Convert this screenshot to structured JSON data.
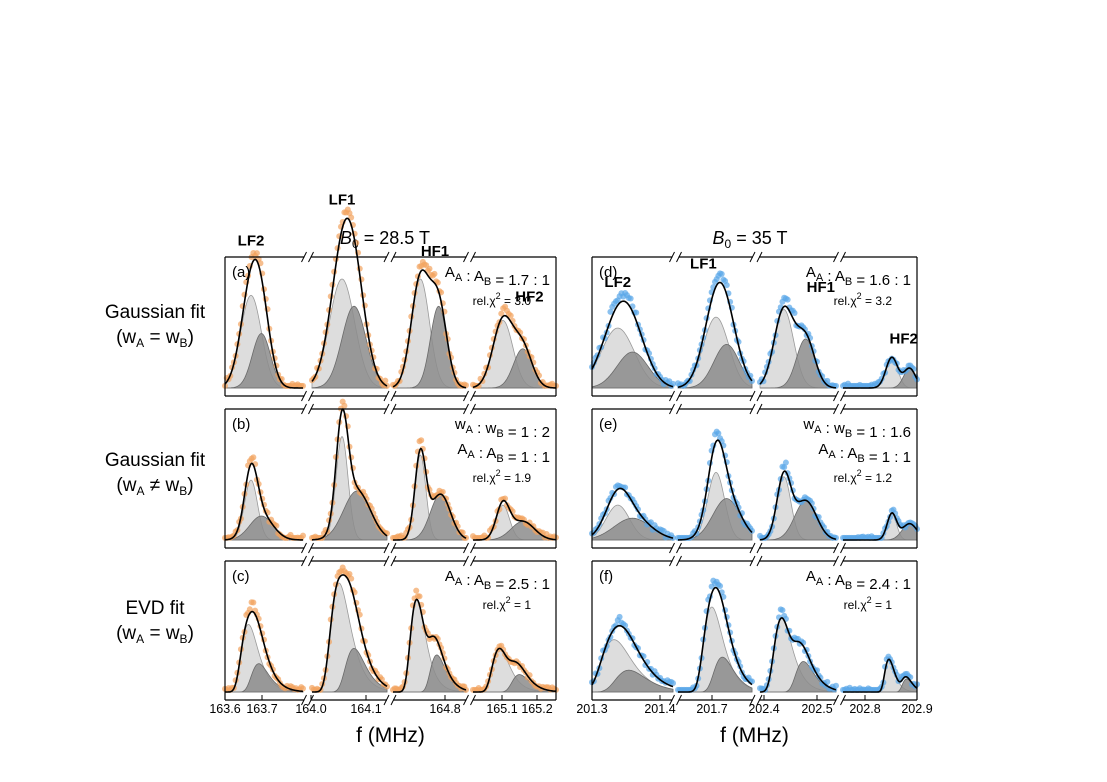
{
  "row_labels": [
    {
      "line1": "Gaussian fit",
      "line2": "(w_A = w_B)"
    },
    {
      "line1": "Gaussian fit",
      "line2": "(w_A ≠ w_B)"
    },
    {
      "line1": "EVD fit",
      "line2": "(w_A = w_B)"
    }
  ],
  "column_titles": [
    "B0 = 28.5 T",
    "B0 = 35 T"
  ],
  "chart_data": [
    {
      "type": "scatter",
      "panel": "(a)",
      "column": 0,
      "row": 0,
      "fit": "gaussian-equal-width",
      "ratio_lines": [
        "A_A : A_B = 1.7 : 1"
      ],
      "chi_text": "rel.χ² = 3.0",
      "peak_labels": [
        {
          "text": "LF2",
          "x": 163.7
        },
        {
          "text": "LF1",
          "x": 164.05
        },
        {
          "text": "HF1",
          "x": 164.78
        },
        {
          "text": "HF2",
          "x": 165.17
        }
      ],
      "segments": [
        {
          "range": [
            163.6,
            163.9
          ],
          "peaks": [
            {
              "a": 0.85,
              "b": 0.5,
              "c": 163.7,
              "sa": 0.04,
              "sb": 0.035
            }
          ]
        },
        {
          "range": [
            163.95,
            164.2
          ],
          "peaks": [
            {
              "a": 1.0,
              "b": 0.75,
              "c": 164.05,
              "sa": 0.042,
              "sb": 0.04,
              "shift": 0.04
            }
          ]
        },
        {
          "range": [
            164.55,
            164.95
          ],
          "peaks": [
            {
              "a": 1.0,
              "b": 0.75,
              "c": 164.7,
              "sa": 0.05,
              "sb": 0.045,
              "shift": 0.1
            }
          ]
        },
        {
          "range": [
            165.0,
            165.25
          ],
          "peaks": [
            {
              "a": 0.62,
              "b": 0.36,
              "c": 165.09,
              "sa": 0.03,
              "sb": 0.028,
              "shift": 0.06
            }
          ]
        }
      ],
      "series_color": "#f2a25e"
    },
    {
      "type": "scatter",
      "panel": "(b)",
      "column": 0,
      "row": 1,
      "fit": "gaussian-unequal-width",
      "ratio_lines": [
        "w_A : w_B = 1 : 2",
        "A_A : A_B = 1 : 1"
      ],
      "chi_text": "rel.χ² = 1.9",
      "peak_labels": [],
      "segments": [
        {
          "range": [
            163.6,
            163.9
          ],
          "peaks": [
            {
              "a": 0.55,
              "b": 0.22,
              "c": 163.7,
              "sa": 0.025,
              "sb": 0.045
            }
          ]
        },
        {
          "range": [
            163.95,
            164.2
          ],
          "peaks": [
            {
              "a": 0.95,
              "b": 0.45,
              "c": 164.05,
              "sa": 0.02,
              "sb": 0.045,
              "shift": 0.05
            }
          ]
        },
        {
          "range": [
            164.55,
            164.95
          ],
          "peaks": [
            {
              "a": 0.78,
              "b": 0.42,
              "c": 164.7,
              "sa": 0.03,
              "sb": 0.055,
              "shift": 0.11
            }
          ]
        },
        {
          "range": [
            165.0,
            165.25
          ],
          "peaks": [
            {
              "a": 0.32,
              "b": 0.17,
              "c": 165.09,
              "sa": 0.02,
              "sb": 0.035,
              "shift": 0.06
            }
          ]
        }
      ],
      "series_color": "#f2a25e"
    },
    {
      "type": "scatter",
      "panel": "(c)",
      "column": 0,
      "row": 2,
      "fit": "evd-equal-width",
      "ratio_lines": [
        "A_A : A_B = 2.5 : 1"
      ],
      "chi_text": "rel.χ² = 1",
      "peak_labels": [],
      "segments": [
        {
          "range": [
            163.6,
            163.9
          ],
          "peaks": [
            {
              "a": 0.62,
              "b": 0.26,
              "c": 163.69,
              "sa": 0.032,
              "sb": 0.032,
              "evd": true
            }
          ]
        },
        {
          "range": [
            163.95,
            164.2
          ],
          "peaks": [
            {
              "a": 1.0,
              "b": 0.4,
              "c": 164.04,
              "sa": 0.032,
              "sb": 0.032,
              "shift": 0.05,
              "evd": true
            }
          ]
        },
        {
          "range": [
            164.55,
            164.95
          ],
          "peaks": [
            {
              "a": 0.85,
              "b": 0.34,
              "c": 164.68,
              "sa": 0.04,
              "sb": 0.04,
              "shift": 0.11,
              "evd": true
            }
          ]
        },
        {
          "range": [
            165.0,
            165.25
          ],
          "peaks": [
            {
              "a": 0.4,
              "b": 0.16,
              "c": 165.08,
              "sa": 0.025,
              "sb": 0.025,
              "shift": 0.06,
              "evd": true
            }
          ]
        }
      ],
      "series_color": "#f2a25e"
    },
    {
      "type": "scatter",
      "panel": "(d)",
      "column": 1,
      "row": 0,
      "fit": "gaussian-equal-width",
      "ratio_lines": [
        "A_A : A_B = 1.6 : 1"
      ],
      "chi_text": "rel.χ² = 3.2",
      "peak_labels": [
        {
          "text": "LF2",
          "x": 201.37
        },
        {
          "text": "LF1",
          "x": 201.72
        },
        {
          "text": "HF1",
          "x": 202.3
        },
        {
          "text": "HF2",
          "x": 202.86
        }
      ],
      "segments": [
        {
          "range": [
            201.3,
            201.52
          ],
          "peaks": [
            {
              "a": 0.55,
              "b": 0.33,
              "c": 201.37,
              "sa": 0.045,
              "sb": 0.042
            }
          ]
        },
        {
          "range": [
            201.6,
            201.95
          ],
          "peaks": [
            {
              "a": 0.65,
              "b": 0.4,
              "c": 201.78,
              "sa": 0.06,
              "sb": 0.06,
              "shift": 0.05
            }
          ]
        },
        {
          "range": [
            202.02,
            202.37
          ],
          "peaks": [
            {
              "a": 0.72,
              "b": 0.45,
              "c": 202.13,
              "sa": 0.045,
              "sb": 0.042,
              "shift": 0.1
            }
          ]
        },
        {
          "range": [
            202.45,
            202.95
          ],
          "peaks": [
            {
              "a": 0.28,
              "b": 0.18,
              "c": 202.78,
              "sa": 0.04,
              "sb": 0.04,
              "shift": 0.12
            }
          ]
        }
      ],
      "series_color": "#5aa7e8"
    },
    {
      "type": "scatter",
      "panel": "(e)",
      "column": 1,
      "row": 1,
      "fit": "gaussian-unequal-width",
      "ratio_lines": [
        "w_A : w_B = 1 : 1.6",
        "A_A : A_B = 1 : 1"
      ],
      "chi_text": "rel.χ² = 1.2",
      "peak_labels": [],
      "segments": [
        {
          "range": [
            201.3,
            201.52
          ],
          "peaks": [
            {
              "a": 0.32,
              "b": 0.2,
              "c": 201.37,
              "sa": 0.032,
              "sb": 0.05
            }
          ]
        },
        {
          "range": [
            201.6,
            201.95
          ],
          "peaks": [
            {
              "a": 0.62,
              "b": 0.38,
              "c": 201.78,
              "sa": 0.04,
              "sb": 0.065,
              "shift": 0.05
            }
          ]
        },
        {
          "range": [
            202.02,
            202.37
          ],
          "peaks": [
            {
              "a": 0.58,
              "b": 0.36,
              "c": 202.13,
              "sa": 0.032,
              "sb": 0.05,
              "shift": 0.1
            }
          ]
        },
        {
          "range": [
            202.45,
            202.95
          ],
          "peaks": [
            {
              "a": 0.24,
              "b": 0.15,
              "c": 202.78,
              "sa": 0.032,
              "sb": 0.05,
              "shift": 0.12
            }
          ]
        }
      ],
      "series_color": "#5aa7e8"
    },
    {
      "type": "scatter",
      "panel": "(f)",
      "column": 1,
      "row": 2,
      "fit": "evd-equal-width",
      "ratio_lines": [
        "A_A : A_B = 2.4 : 1"
      ],
      "chi_text": "rel.χ² = 1",
      "peak_labels": [],
      "segments": [
        {
          "range": [
            201.3,
            201.52
          ],
          "peaks": [
            {
              "a": 0.48,
              "b": 0.2,
              "c": 201.36,
              "sa": 0.04,
              "sb": 0.04,
              "evd": true
            }
          ]
        },
        {
          "range": [
            201.6,
            201.95
          ],
          "peaks": [
            {
              "a": 0.78,
              "b": 0.32,
              "c": 201.76,
              "sa": 0.045,
              "sb": 0.045,
              "shift": 0.05,
              "evd": true
            }
          ]
        },
        {
          "range": [
            202.02,
            202.37
          ],
          "peaks": [
            {
              "a": 0.68,
              "b": 0.28,
              "c": 202.12,
              "sa": 0.04,
              "sb": 0.04,
              "shift": 0.1,
              "evd": true
            }
          ]
        },
        {
          "range": [
            202.45,
            202.95
          ],
          "peaks": [
            {
              "a": 0.3,
              "b": 0.12,
              "c": 202.76,
              "sa": 0.032,
              "sb": 0.032,
              "shift": 0.12,
              "evd": true
            }
          ]
        }
      ],
      "series_color": "#5aa7e8"
    }
  ],
  "x_axes": [
    {
      "column": 0,
      "xlabel": "f (MHz)",
      "tick_labels": [
        "163.6",
        "163.7",
        "164.0",
        "164.1",
        "164.8",
        "165.1",
        "165.2"
      ]
    },
    {
      "column": 1,
      "xlabel": "f (MHz)",
      "tick_labels": [
        "201.3",
        "201.4",
        "201.7",
        "202.4",
        "202.5",
        "202.8",
        "202.9"
      ]
    }
  ],
  "colors": {
    "data_orange": "#f2a25e",
    "data_blue": "#5aa7e8",
    "component_a": "#d9d9d9",
    "component_b": "#8c8c8c",
    "fit_line": "#000000"
  }
}
